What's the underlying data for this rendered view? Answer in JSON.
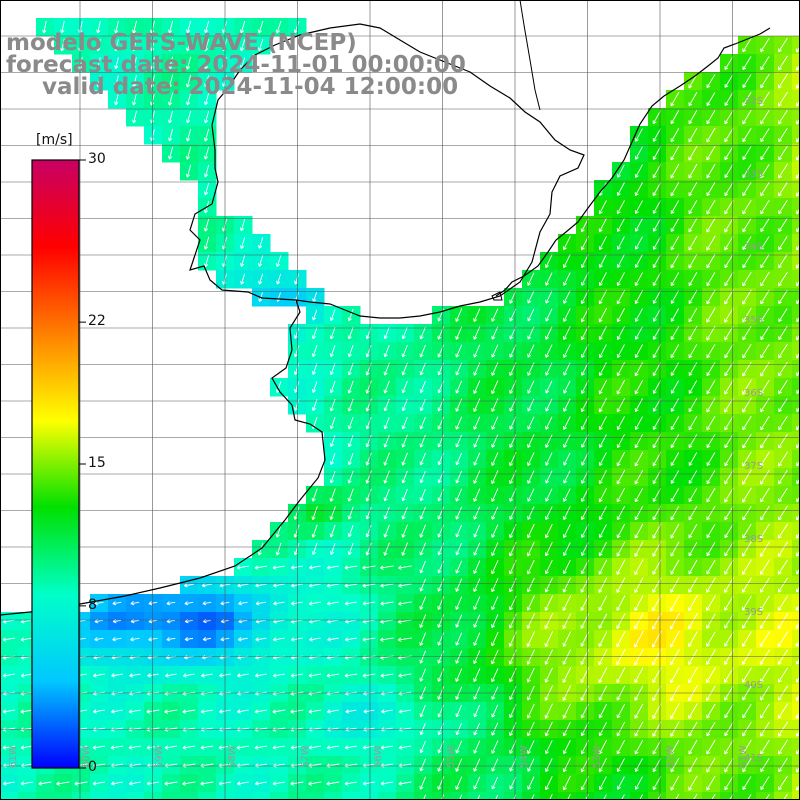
{
  "title": {
    "line1": "modelo GEFS-WAVE (NCEP)",
    "line2": "forecast date: 2024-11-01 00:00:00",
    "line3": "valid date: 2024-11-04 12:00:00"
  },
  "colorbar": {
    "unit": "[m/s]",
    "min": 0,
    "max": 30,
    "tick_labels": [
      "30",
      "22",
      "15",
      "8",
      "0"
    ],
    "tick_values": [
      30,
      22,
      15,
      8,
      0
    ],
    "colors": [
      "#0000ff",
      "#00c8ff",
      "#00ffc8",
      "#00e000",
      "#ffff00",
      "#ff8000",
      "#ff0000",
      "#c80064"
    ]
  },
  "map": {
    "lat_labels": [
      "32S",
      "33S",
      "34S",
      "35S",
      "36S",
      "37S",
      "38S",
      "39S",
      "40S",
      "41S"
    ],
    "lon_labels": [
      "61W",
      "60W",
      "59W",
      "58W",
      "57W",
      "56W",
      "55W",
      "54W",
      "53W",
      "52W",
      "51W"
    ],
    "land_color": "#ffffff",
    "grid_color": "#555555",
    "coast_color": "#000000",
    "arrow_color": "#ffffff"
  }
}
